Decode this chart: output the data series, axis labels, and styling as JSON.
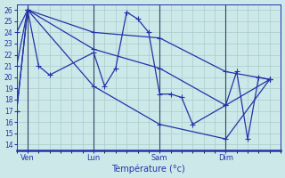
{
  "xlabel": "Température (°c)",
  "background_color": "#cce8e8",
  "grid_color": "#aacccc",
  "line_color": "#2233aa",
  "xlim": [
    0,
    24
  ],
  "ylim": [
    13.5,
    26.5
  ],
  "yticks": [
    14,
    15,
    16,
    17,
    18,
    19,
    20,
    21,
    22,
    23,
    24,
    25,
    26
  ],
  "day_labels": [
    "Ven",
    "Lun",
    "Sam",
    "Dim"
  ],
  "day_positions": [
    1,
    7,
    13,
    19
  ],
  "main_line": {
    "x": [
      0,
      1,
      2,
      3,
      7,
      8,
      9,
      10,
      11,
      12,
      13,
      14,
      15,
      16,
      19,
      20,
      21,
      22,
      23
    ],
    "y": [
      17,
      26,
      21,
      20.2,
      22.2,
      19.2,
      20.8,
      25.8,
      25.2,
      24.0,
      18.5,
      18.5,
      18.2,
      15.8,
      17.5,
      20.5,
      14.5,
      20.0,
      19.8
    ]
  },
  "smooth_lines": [
    {
      "x": [
        0,
        1,
        7,
        13,
        19,
        23
      ],
      "y": [
        24,
        26,
        24.0,
        23.5,
        20.5,
        19.8
      ]
    },
    {
      "x": [
        0,
        1,
        7,
        13,
        19,
        23
      ],
      "y": [
        21,
        26,
        22.5,
        20.8,
        17.5,
        19.8
      ]
    },
    {
      "x": [
        0,
        1,
        7,
        13,
        19,
        23
      ],
      "y": [
        17,
        26,
        19.2,
        15.8,
        14.5,
        19.8
      ]
    }
  ]
}
